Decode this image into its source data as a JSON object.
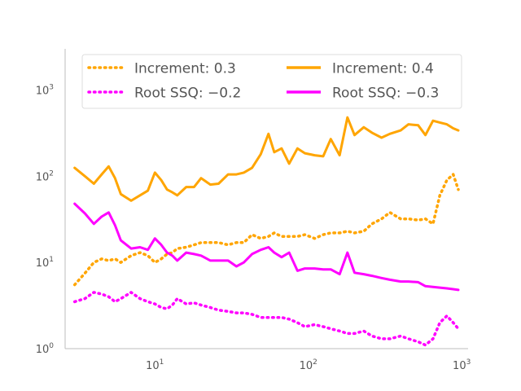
{
  "chart_data": {
    "type": "line",
    "title": "",
    "xlabel": "",
    "ylabel": "",
    "xscale": "log",
    "yscale": "log",
    "xlim": [
      2.6,
      1100
    ],
    "ylim": [
      1,
      3000
    ],
    "grid": false,
    "legend": {
      "position": "top",
      "columns": 2
    },
    "x_ticks": [
      {
        "base": "10",
        "exp": "1",
        "value": 10
      },
      {
        "base": "10",
        "exp": "2",
        "value": 100
      },
      {
        "base": "10",
        "exp": "3",
        "value": 1000
      }
    ],
    "y_ticks": [
      {
        "base": "10",
        "exp": "0",
        "value": 1
      },
      {
        "base": "10",
        "exp": "1",
        "value": 10
      },
      {
        "base": "10",
        "exp": "2",
        "value": 100
      },
      {
        "base": "10",
        "exp": "3",
        "value": 1000
      }
    ],
    "x": [
      3,
      3.5,
      4,
      4.5,
      5,
      5.5,
      6,
      7,
      8,
      9,
      10,
      11,
      12,
      13,
      14,
      16,
      18,
      20,
      23,
      26,
      30,
      34,
      38,
      43,
      49,
      55,
      60,
      67,
      75,
      85,
      95,
      110,
      125,
      140,
      160,
      180,
      200,
      230,
      260,
      300,
      340,
      400,
      450,
      520,
      580,
      650,
      720,
      800,
      880,
      950
    ],
    "series": [
      {
        "name": "Increment: 0.3",
        "color": "#FFA500",
        "style": "dotted",
        "values": [
          5.5,
          7.5,
          10,
          11,
          10.5,
          11,
          10,
          12,
          13,
          12,
          10,
          11,
          12.5,
          13,
          14.5,
          15,
          16,
          17,
          17,
          17,
          16,
          17,
          17,
          21,
          19,
          20,
          22,
          20,
          20,
          20,
          21,
          19,
          21,
          22,
          22,
          23,
          22,
          23,
          28,
          32,
          38,
          32,
          32,
          31,
          32,
          28,
          60,
          90,
          105,
          70
        ]
      },
      {
        "name": "Increment: 0.4",
        "color": "#FFA500",
        "style": "solid",
        "values": [
          125,
          100,
          82,
          105,
          130,
          95,
          62,
          52,
          60,
          68,
          110,
          90,
          70,
          65,
          60,
          75,
          75,
          95,
          80,
          82,
          105,
          105,
          110,
          125,
          180,
          310,
          190,
          210,
          140,
          210,
          185,
          175,
          170,
          270,
          175,
          480,
          300,
          370,
          320,
          280,
          310,
          340,
          400,
          390,
          300,
          440,
          420,
          400,
          360,
          340
        ]
      },
      {
        "name": "Root SSQ: −0.2",
        "color": "#FF00FF",
        "style": "dotted",
        "values": [
          3.5,
          3.8,
          4.5,
          4.3,
          4.0,
          3.5,
          3.8,
          4.5,
          3.8,
          3.5,
          3.3,
          3.0,
          2.9,
          3.2,
          3.8,
          3.3,
          3.4,
          3.2,
          3.0,
          2.8,
          2.7,
          2.6,
          2.6,
          2.5,
          2.3,
          2.3,
          2.3,
          2.3,
          2.2,
          2.0,
          1.8,
          1.9,
          1.8,
          1.7,
          1.6,
          1.5,
          1.5,
          1.6,
          1.4,
          1.3,
          1.3,
          1.4,
          1.3,
          1.2,
          1.1,
          1.3,
          2.0,
          2.4,
          2.0,
          1.7
        ]
      },
      {
        "name": "Root SSQ: −0.3",
        "color": "#FF00FF",
        "style": "solid",
        "values": [
          48,
          37,
          28,
          34,
          38,
          27,
          18,
          14.5,
          15,
          14,
          19,
          16,
          13,
          12,
          10.5,
          13,
          12.5,
          12,
          10.5,
          10.5,
          10.5,
          9,
          10,
          12.5,
          14,
          15,
          13,
          11.5,
          13,
          8,
          8.5,
          8.5,
          8.3,
          8.3,
          7.3,
          13,
          7.6,
          7.3,
          7,
          6.6,
          6.3,
          6,
          6,
          5.9,
          5.3,
          5.2,
          5.1,
          5.0,
          4.9,
          4.8
        ]
      }
    ]
  }
}
